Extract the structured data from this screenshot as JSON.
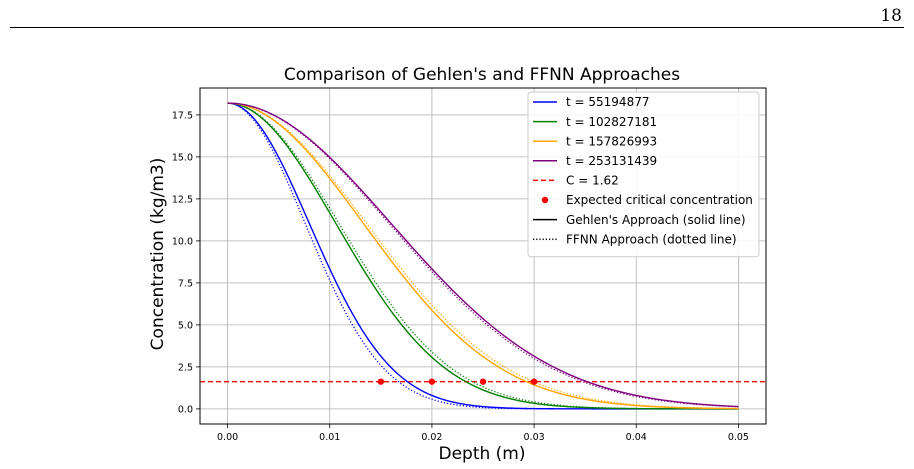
{
  "page": {
    "number": "18"
  },
  "chart_data": {
    "type": "line",
    "title": "Comparison of Gehlen's and FFNN Approaches",
    "xlabel": "Depth (m)",
    "ylabel": "Concentration (kg/m3)",
    "xlim": [
      -0.0027,
      0.0527
    ],
    "ylim": [
      -0.9,
      19.1
    ],
    "xticks": [
      0.0,
      0.01,
      0.02,
      0.03,
      0.04,
      0.05
    ],
    "xtick_labels": [
      "0.00",
      "0.01",
      "0.02",
      "0.03",
      "0.04",
      "0.05"
    ],
    "yticks": [
      0.0,
      2.5,
      5.0,
      7.5,
      10.0,
      12.5,
      15.0,
      17.5
    ],
    "ytick_labels": [
      "0.0",
      "2.5",
      "5.0",
      "7.5",
      "10.0",
      "12.5",
      "15.0",
      "17.5"
    ],
    "grid": true,
    "legend_position": "top-right",
    "surface_concentration": 18.2,
    "depth_max": 0.05,
    "series": [
      {
        "name": "t = 55194877",
        "color": "#0000ff",
        "gehlen_sigma": 0.008,
        "ffnn_sigma": 0.0076
      },
      {
        "name": "t = 102827181",
        "color": "#008000",
        "gehlen_sigma": 0.0106,
        "ffnn_sigma": 0.0109
      },
      {
        "name": "t = 157826993",
        "color": "#ffa500",
        "gehlen_sigma": 0.0133,
        "ffnn_sigma": 0.0136
      },
      {
        "name": "t = 253131439",
        "color": "#800080",
        "gehlen_sigma": 0.016,
        "ffnn_sigma": 0.0158
      }
    ],
    "critical_line": {
      "name": "C = 1.62",
      "value": 1.62,
      "color": "#ff0000"
    },
    "critical_points": {
      "name": "Expected critical concentration",
      "color": "#ff0000",
      "x": [
        0.015,
        0.02,
        0.025,
        0.03
      ],
      "y": [
        1.62,
        1.62,
        1.62,
        1.62
      ]
    },
    "style_legend": [
      {
        "name": "Gehlen's Approach (solid line)",
        "style": "solid"
      },
      {
        "name": "FFNN Approach (dotted line)",
        "style": "dotted"
      }
    ]
  }
}
